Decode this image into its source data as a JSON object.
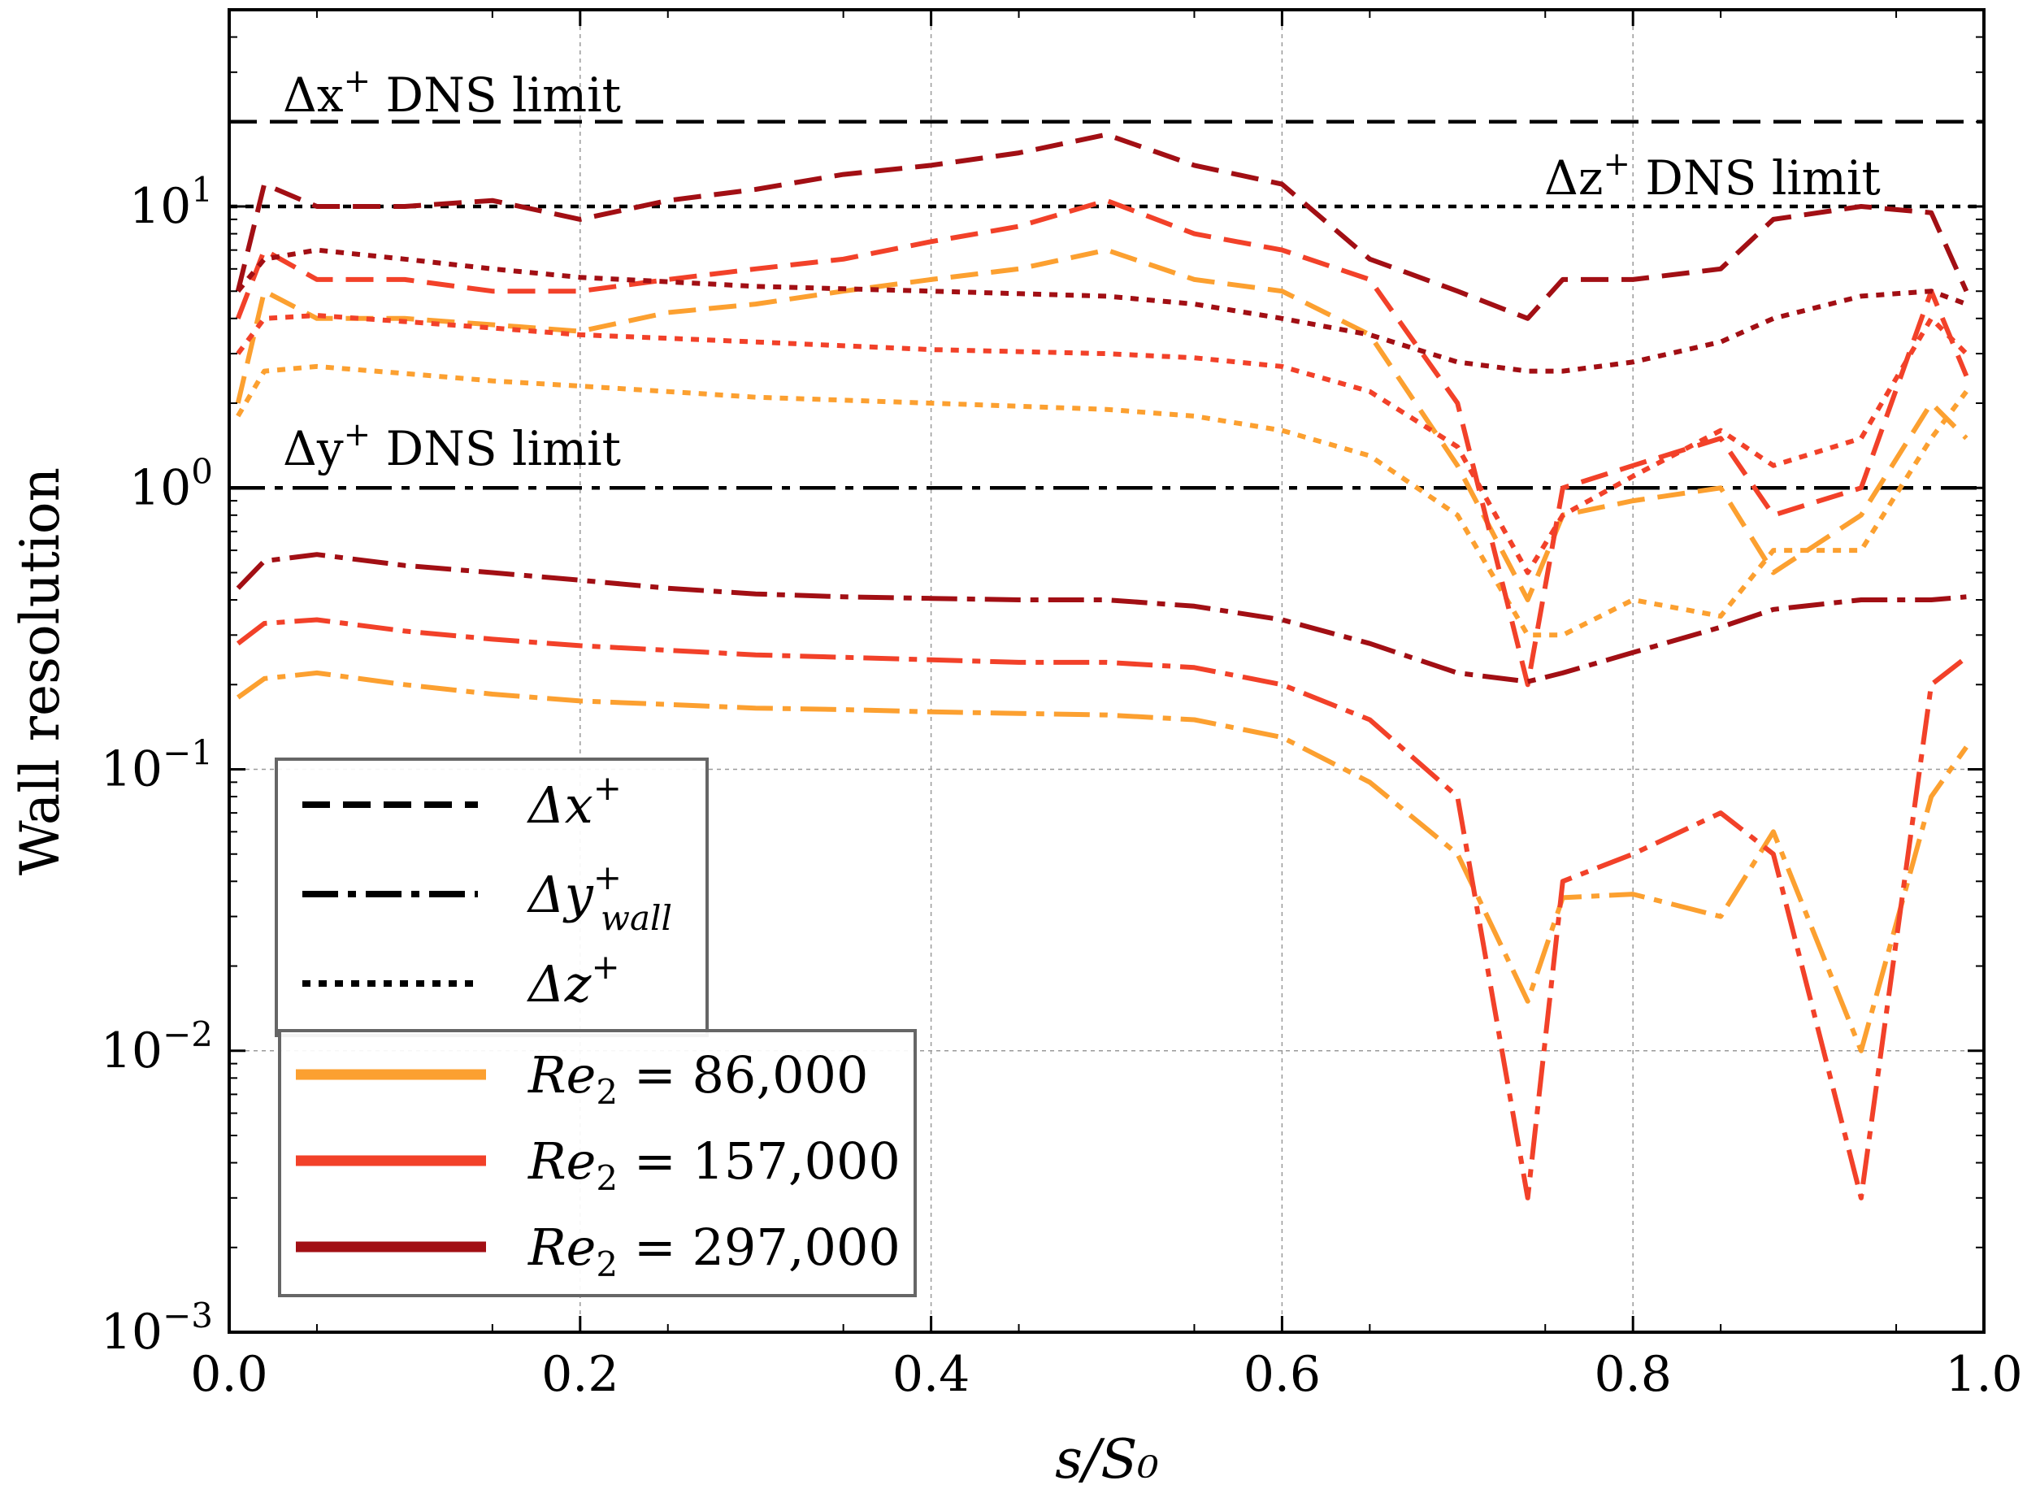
{
  "chart_data": {
    "type": "line",
    "title": "",
    "xlabel": "s/S₀",
    "ylabel": "Wall resolution",
    "xlim": [
      0,
      1
    ],
    "ylim": [
      0.001,
      50
    ],
    "yscale": "log",
    "grid": true,
    "x_ticks": [
      "0.0",
      "0.2",
      "0.4",
      "0.6",
      "0.8",
      "1.0"
    ],
    "y_ticks": [
      {
        "base": "10",
        "exp": "−3"
      },
      {
        "base": "10",
        "exp": "−2"
      },
      {
        "base": "10",
        "exp": "−1"
      },
      {
        "base": "10",
        "exp": "0"
      },
      {
        "base": "10",
        "exp": "1"
      }
    ],
    "reference_lines": [
      {
        "name": "Δx⁺ DNS limit",
        "value": 20,
        "style": "dashed"
      },
      {
        "name": "Δz⁺ DNS limit",
        "value": 10,
        "style": "dotted"
      },
      {
        "name": "Δy⁺ DNS limit",
        "value": 1,
        "style": "dashdot"
      }
    ],
    "annotations": {
      "dx": {
        "main": "Δx",
        "sup": "+",
        "rest": " DNS limit"
      },
      "dz": {
        "main": "Δz",
        "sup": "+",
        "rest": " DNS limit"
      },
      "dy": {
        "main": "Δy",
        "sup": "+",
        "rest": " DNS limit"
      }
    },
    "legend_styles": [
      {
        "main": "Δx",
        "sup": "+",
        "sub": "",
        "style": "dashed"
      },
      {
        "main": "Δy",
        "sup": "+",
        "sub": "wall",
        "style": "dashdot"
      },
      {
        "main": "Δz",
        "sup": "+",
        "sub": "",
        "style": "dotted"
      }
    ],
    "legend_position": "lower-left",
    "x": [
      0.005,
      0.02,
      0.05,
      0.1,
      0.15,
      0.2,
      0.25,
      0.3,
      0.35,
      0.4,
      0.45,
      0.5,
      0.55,
      0.6,
      0.65,
      0.7,
      0.74,
      0.76,
      0.8,
      0.85,
      0.88,
      0.93,
      0.97,
      0.99
    ],
    "series": [
      {
        "name": "Re₂ = 86,000",
        "label_main": "Re",
        "label_sub": "2",
        "label_rest": " = 86,000",
        "color": "#fca030",
        "dx": [
          2.0,
          5.0,
          4.0,
          4.0,
          3.8,
          3.6,
          4.2,
          4.5,
          5.0,
          5.5,
          6.0,
          7.0,
          5.5,
          5.0,
          3.5,
          1.2,
          0.4,
          0.8,
          0.9,
          1.0,
          0.5,
          0.8,
          2.0,
          1.5
        ],
        "dy": [
          0.18,
          0.21,
          0.22,
          0.2,
          0.185,
          0.175,
          0.17,
          0.165,
          0.163,
          0.16,
          0.158,
          0.156,
          0.15,
          0.13,
          0.09,
          0.05,
          0.015,
          0.035,
          0.036,
          0.03,
          0.06,
          0.01,
          0.08,
          0.12
        ],
        "dz": [
          1.8,
          2.6,
          2.7,
          2.55,
          2.4,
          2.3,
          2.2,
          2.1,
          2.05,
          2.0,
          1.95,
          1.9,
          1.8,
          1.6,
          1.3,
          0.8,
          0.3,
          0.3,
          0.4,
          0.35,
          0.6,
          0.6,
          1.5,
          2.2
        ]
      },
      {
        "name": "Re₂ = 157,000",
        "label_main": "Re",
        "label_sub": "2",
        "label_rest": " = 157,000",
        "color": "#f24129",
        "dx": [
          4.0,
          7.0,
          5.5,
          5.5,
          5.0,
          5.0,
          5.5,
          6.0,
          6.5,
          7.5,
          8.5,
          10.5,
          8.0,
          7.0,
          5.5,
          2.0,
          0.2,
          1.0,
          1.2,
          1.5,
          0.8,
          1.0,
          5.0,
          2.5
        ],
        "dy": [
          0.28,
          0.33,
          0.34,
          0.31,
          0.29,
          0.275,
          0.265,
          0.255,
          0.25,
          0.245,
          0.24,
          0.24,
          0.23,
          0.2,
          0.15,
          0.08,
          0.003,
          0.04,
          0.05,
          0.07,
          0.05,
          0.003,
          0.2,
          0.25
        ],
        "dz": [
          3.0,
          4.0,
          4.1,
          3.9,
          3.7,
          3.5,
          3.4,
          3.3,
          3.2,
          3.1,
          3.05,
          3.0,
          2.9,
          2.7,
          2.2,
          1.4,
          0.5,
          0.8,
          1.1,
          1.6,
          1.2,
          1.5,
          4.0,
          3.0
        ]
      },
      {
        "name": "Re₂ = 297,000",
        "label_main": "Re",
        "label_sub": "2",
        "label_rest": " = 297,000",
        "color": "#a20f14",
        "dx": [
          5.0,
          12.0,
          10.0,
          10.0,
          10.5,
          9.0,
          10.5,
          11.5,
          13.0,
          14.0,
          15.5,
          18.0,
          14.0,
          12.0,
          6.5,
          5.0,
          4.0,
          5.5,
          5.5,
          6.0,
          9.0,
          10.0,
          9.5,
          5.0
        ],
        "dy": [
          0.44,
          0.55,
          0.58,
          0.53,
          0.5,
          0.47,
          0.44,
          0.42,
          0.41,
          0.405,
          0.4,
          0.4,
          0.38,
          0.34,
          0.28,
          0.22,
          0.205,
          0.22,
          0.26,
          0.32,
          0.37,
          0.4,
          0.4,
          0.41
        ],
        "dz": [
          5.0,
          6.5,
          7.0,
          6.5,
          6.0,
          5.6,
          5.4,
          5.2,
          5.1,
          5.0,
          4.9,
          4.8,
          4.5,
          4.0,
          3.5,
          2.8,
          2.6,
          2.6,
          2.8,
          3.3,
          4.0,
          4.8,
          5.0,
          4.5
        ]
      }
    ]
  }
}
